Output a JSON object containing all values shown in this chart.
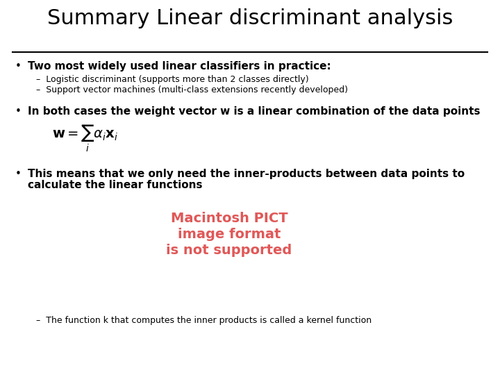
{
  "title": "Summary Linear discriminant analysis",
  "background_color": "#ffffff",
  "title_fontsize": 22,
  "line_color": "#000000",
  "bullet1_bold": "Two most widely used linear classifiers in practice:",
  "sub1": "Logistic discriminant (supports more than 2 classes directly)",
  "sub2": "Support vector machines (multi-class extensions recently developed)",
  "bullet2_bold": "In both cases the weight vector w is a linear combination of the data points",
  "formula": "$\\mathbf{w} = \\sum_i \\alpha_i \\mathbf{x}_i$",
  "bullet3_line1": "This means that we only need the inner-products between data points to",
  "bullet3_line2": "calculate the linear functions",
  "pict_line1": "Macintosh PICT",
  "pict_line2": "image format",
  "pict_line3": "is not supported",
  "pict_color": "#e05858",
  "sub3": "The function k that computes the inner products is called a kernel function",
  "bullet_color": "#000000",
  "text_color": "#000000",
  "bullet_fontsize": 11,
  "sub_fontsize": 9,
  "pict_fontsize": 14,
  "formula_fontsize": 14
}
